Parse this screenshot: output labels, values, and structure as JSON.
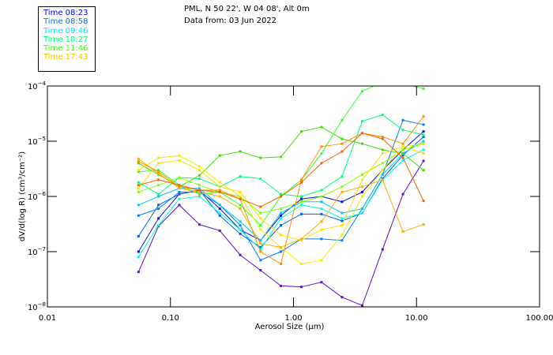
{
  "header": {
    "title": "PML, N 50 22', W 04 08', Alt 0m",
    "subtitle": "Data from: 03 Jun 2022"
  },
  "legend": [
    {
      "label": "Time 08:23",
      "color": "#0000ff"
    },
    {
      "label": "Time 08:58",
      "color": "#0070ff"
    },
    {
      "label": "Time 09:46",
      "color": "#00e8ff"
    },
    {
      "label": "Time 10:27",
      "color": "#00ff70"
    },
    {
      "label": "Time 11:46",
      "color": "#40ff00"
    },
    {
      "label": "Time 17:43",
      "color": "#ffc000"
    }
  ],
  "chart_data": {
    "type": "line",
    "xscale": "log",
    "yscale": "log",
    "xlabel": "Aerosol Size (µm)",
    "ylabel": "dV/d(log R) (cm³/cm⁻²)",
    "xlim": [
      0.01,
      100
    ],
    "ylim": [
      1e-08,
      0.0001
    ],
    "xticks": [
      {
        "v": 0.01,
        "label": "0.01"
      },
      {
        "v": 0.1,
        "label": "0.10"
      },
      {
        "v": 1,
        "label": "1.00"
      },
      {
        "v": 10,
        "label": "10.00"
      },
      {
        "v": 100,
        "label": "100.00"
      }
    ],
    "yticks": [
      {
        "v": 0.0001,
        "base": "10",
        "exp": "−4"
      },
      {
        "v": 1e-05,
        "base": "10",
        "exp": "−5"
      },
      {
        "v": 1e-06,
        "base": "10",
        "exp": "−6"
      },
      {
        "v": 1e-07,
        "base": "10",
        "exp": "−7"
      },
      {
        "v": 1e-08,
        "base": "10",
        "exp": "−8"
      }
    ],
    "x": [
      0.055,
      0.08,
      0.118,
      0.172,
      0.252,
      0.369,
      0.54,
      0.79,
      1.16,
      1.69,
      2.48,
      3.62,
      5.3,
      7.76,
      11.4
    ],
    "series": [
      {
        "name": "s1",
        "color": "#6010d0",
        "values": [
          4.3e-08,
          2.9e-07,
          7e-07,
          3.1e-07,
          2.4e-07,
          8.7e-08,
          4.6e-08,
          2.4e-08,
          2.3e-08,
          2.8e-08,
          1.5e-08,
          1.06e-08,
          1.1e-07,
          1.1e-06,
          4.4e-06
        ]
      },
      {
        "name": "s2",
        "color": "#1010e0",
        "values": [
          1e-07,
          4e-07,
          1.1e-06,
          1.3e-06,
          6e-07,
          2.5e-07,
          1.6e-07,
          4.5e-07,
          9e-07,
          1e-06,
          8e-07,
          1.2e-06,
          3e-06,
          7e-06,
          1.5e-05
        ]
      },
      {
        "name": "s3",
        "color": "#0060ff",
        "values": [
          1.9e-07,
          7e-07,
          1.1e-06,
          1.3e-06,
          4.5e-07,
          2.1e-07,
          1.2e-07,
          3e-07,
          4.8e-07,
          4.8e-07,
          3.6e-07,
          5e-07,
          2.1e-06,
          5.6e-06,
          1.2e-05
        ]
      },
      {
        "name": "s4",
        "color": "#0080ff",
        "values": [
          4.5e-07,
          6e-07,
          1.2e-06,
          1.2e-06,
          7e-07,
          3e-07,
          7e-08,
          1e-07,
          1.7e-07,
          1.7e-07,
          1.6e-07,
          6e-07,
          2.5e-06,
          2.4e-05,
          2e-05
        ]
      },
      {
        "name": "s5",
        "color": "#00c8ff",
        "values": [
          7e-07,
          1e-06,
          1.4e-06,
          1.4e-06,
          7e-07,
          3.5e-07,
          1.6e-07,
          5e-07,
          8e-07,
          8e-07,
          5e-07,
          6e-07,
          2.5e-06,
          6e-06,
          1e-05
        ]
      },
      {
        "name": "s6",
        "color": "#00ffe0",
        "values": [
          8e-08,
          3e-07,
          9e-07,
          1e-06,
          5e-07,
          2.5e-07,
          1.1e-07,
          4e-07,
          7e-07,
          6e-07,
          4e-07,
          5e-07,
          2e-06,
          4.5e-06,
          7e-06
        ]
      },
      {
        "name": "s7",
        "color": "#00ff80",
        "values": [
          1.8e-06,
          1.1e-06,
          2.2e-06,
          2.1e-06,
          1.5e-06,
          2.3e-06,
          2.1e-06,
          1.1e-06,
          1e-06,
          1.3e-06,
          2.3e-06,
          2.3e-05,
          3e-05,
          1.6e-05,
          1.3e-05
        ]
      },
      {
        "name": "s8",
        "color": "#40e000",
        "values": [
          4e-06,
          2.5e-06,
          1.5e-06,
          2.4e-06,
          5.5e-06,
          6.5e-06,
          5e-06,
          5.2e-06,
          1.5e-05,
          1.8e-05,
          1.1e-05,
          9e-06,
          7e-06,
          6e-06,
          3e-06
        ]
      },
      {
        "name": "s9",
        "color": "#30ff30",
        "values": [
          2.8e-06,
          3e-06,
          1.6e-06,
          1.1e-06,
          1.2e-06,
          7e-07,
          3e-07,
          1e-06,
          2e-06,
          6e-06,
          2.4e-05,
          8e-05,
          0.00012,
          0.00011,
          9e-05
        ]
      },
      {
        "name": "s10",
        "color": "#80ff00",
        "values": [
          1.2e-06,
          1.6e-06,
          2.2e-06,
          1.6e-06,
          1.2e-06,
          1e-06,
          5e-07,
          6e-07,
          8e-07,
          1e-06,
          1.5e-06,
          2.5e-06,
          4e-06,
          7e-06,
          9e-06
        ]
      },
      {
        "name": "s11",
        "color": "#f0f000",
        "values": [
          3e-06,
          5e-06,
          5.5e-06,
          3.5e-06,
          1.8e-06,
          1e-06,
          2.5e-07,
          1.2e-07,
          6e-08,
          7e-08,
          2e-07,
          1e-06,
          3e-06,
          8e-06,
          9e-06
        ]
      },
      {
        "name": "s12",
        "color": "#ffe000",
        "values": [
          1.4e-06,
          4e-06,
          4.5e-06,
          3e-06,
          1.5e-06,
          1.2e-06,
          4e-07,
          2e-07,
          1.6e-07,
          2.5e-07,
          3e-07,
          2e-06,
          6e-06,
          8e-06,
          6e-06
        ]
      },
      {
        "name": "s13",
        "color": "#ffb000",
        "values": [
          4.8e-06,
          2.6e-06,
          1.4e-06,
          1.2e-06,
          1e-06,
          6e-07,
          1.4e-07,
          1.2e-07,
          1.7e-07,
          3.5e-07,
          1.2e-06,
          1.5e-06,
          2e-06,
          2.3e-07,
          3.1e-07
        ]
      },
      {
        "name": "s14",
        "color": "#ff9000",
        "values": [
          4.3e-06,
          2.8e-06,
          1.5e-06,
          1.3e-06,
          1.3e-06,
          9e-07,
          1e-07,
          6e-08,
          2e-06,
          8e-06,
          9e-06,
          1.4e-05,
          1.2e-05,
          9e-06,
          2.8e-05
        ]
      },
      {
        "name": "s15",
        "color": "#ff6000",
        "values": [
          1.6e-06,
          2e-06,
          1.6e-06,
          1.3e-06,
          1.2e-06,
          9e-07,
          6.5e-07,
          1e-06,
          1.8e-06,
          4e-06,
          6.5e-06,
          1.4e-05,
          1.1e-05,
          5e-06,
          8.3e-07
        ]
      }
    ]
  }
}
